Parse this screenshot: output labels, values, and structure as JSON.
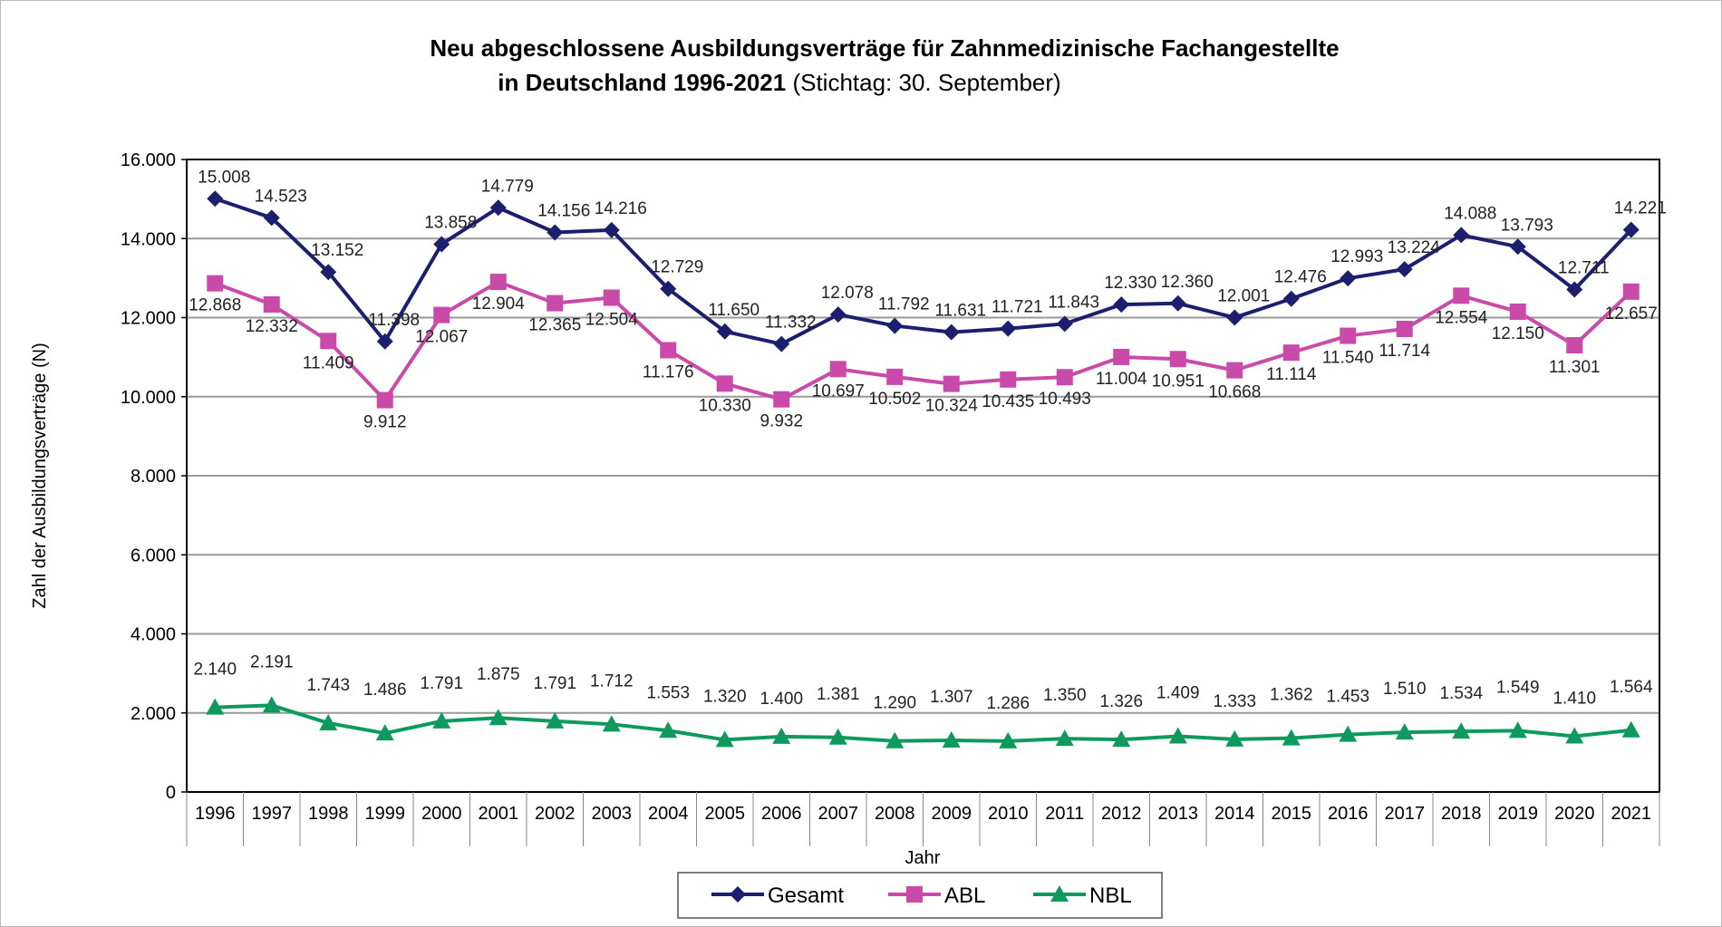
{
  "chart_data": {
    "type": "line",
    "title_line1": "Neu abgeschlossene Ausbildungsverträge für Zahnmedizinische Fachangestellte",
    "title_line2_bold": "in Deutschland 1996-2021",
    "title_line2_normal": " (Stichtag: 30. September)",
    "xlabel": "Jahr",
    "ylabel": "Zahl der Ausbildungsverträge (N)",
    "ylim": [
      0,
      16000
    ],
    "yticks": [
      0,
      2000,
      4000,
      6000,
      8000,
      10000,
      12000,
      14000,
      16000
    ],
    "ytick_labels": [
      "0",
      "2.000",
      "4.000",
      "6.000",
      "8.000",
      "10.000",
      "12.000",
      "14.000",
      "16.000"
    ],
    "grid": true,
    "legend_position": "bottom",
    "categories": [
      "1996",
      "1997",
      "1998",
      "1999",
      "2000",
      "2001",
      "2002",
      "2003",
      "2004",
      "2005",
      "2006",
      "2007",
      "2008",
      "2009",
      "2010",
      "2011",
      "2012",
      "2013",
      "2014",
      "2015",
      "2016",
      "2017",
      "2018",
      "2019",
      "2020",
      "2021"
    ],
    "series": [
      {
        "name": "Gesamt",
        "color": "#1c1f6e",
        "marker": "diamond",
        "values": [
          15008,
          14523,
          13152,
          11398,
          13858,
          14779,
          14156,
          14216,
          12729,
          11650,
          11332,
          12078,
          11792,
          11631,
          11721,
          11843,
          12330,
          12360,
          12001,
          12476,
          12993,
          13224,
          14088,
          13793,
          12711,
          14221
        ],
        "labels": [
          "15.008",
          "14.523",
          "13.152",
          "11.398",
          "13.858",
          "14.779",
          "14.156",
          "14.216",
          "12.729",
          "11.650",
          "11.332",
          "12.078",
          "11.792",
          "11.631",
          "11.721",
          "11.843",
          "12.330",
          "12.360",
          "12.001",
          "12.476",
          "12.993",
          "13.224",
          "14.088",
          "13.793",
          "12.711",
          "14.221"
        ]
      },
      {
        "name": "ABL",
        "color": "#c94aa8",
        "marker": "square",
        "values": [
          12868,
          12332,
          11409,
          9912,
          12067,
          12904,
          12365,
          12504,
          11176,
          10330,
          9932,
          10697,
          10502,
          10324,
          10435,
          10493,
          11004,
          10951,
          10668,
          11114,
          11540,
          11714,
          12554,
          12150,
          11301,
          12657
        ],
        "labels": [
          "12.868",
          "12.332",
          "11.409",
          "9.912",
          "12.067",
          "12.904",
          "12.365",
          "12.504",
          "11.176",
          "10.330",
          "9.932",
          "10.697",
          "10.502",
          "10.324",
          "10.435",
          "10.493",
          "11.004",
          "10.951",
          "10.668",
          "11.114",
          "11.540",
          "11.714",
          "12.554",
          "12.150",
          "11.301",
          "12.657"
        ]
      },
      {
        "name": "NBL",
        "color": "#0d9a5c",
        "marker": "triangle",
        "values": [
          2140,
          2191,
          1743,
          1486,
          1791,
          1875,
          1791,
          1712,
          1553,
          1320,
          1400,
          1381,
          1290,
          1307,
          1286,
          1350,
          1326,
          1409,
          1333,
          1362,
          1453,
          1510,
          1534,
          1549,
          1410,
          1564
        ],
        "labels": [
          "2.140",
          "2.191",
          "1.743",
          "1.486",
          "1.791",
          "1.875",
          "1.791",
          "1.712",
          "1.553",
          "1.320",
          "1.400",
          "1.381",
          "1.290",
          "1.307",
          "1.286",
          "1.350",
          "1.326",
          "1.409",
          "1.333",
          "1.362",
          "1.453",
          "1.510",
          "1.534",
          "1.549",
          "1.410",
          "1.564"
        ]
      }
    ]
  }
}
